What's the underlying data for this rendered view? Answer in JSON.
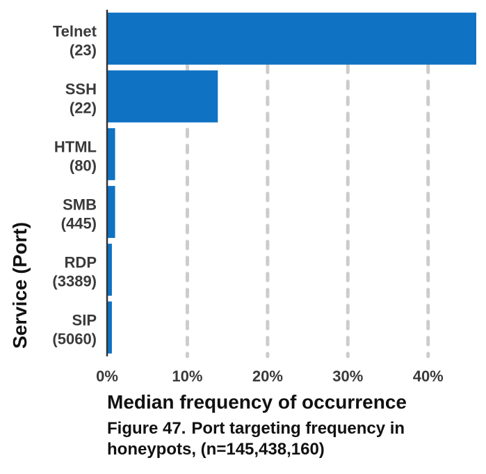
{
  "chart_data": {
    "type": "bar",
    "orientation": "horizontal",
    "categories": [
      {
        "name": "Telnet",
        "port": "(23)"
      },
      {
        "name": "SSH",
        "port": "(22)"
      },
      {
        "name": "HTML",
        "port": "(80)"
      },
      {
        "name": "SMB",
        "port": "(445)"
      },
      {
        "name": "RDP",
        "port": "(3389)"
      },
      {
        "name": "SIP",
        "port": "(5060)"
      }
    ],
    "values": [
      46.0,
      13.8,
      1.0,
      1.0,
      0.6,
      0.6
    ],
    "xlabel": "Median frequency of occurrence",
    "ylabel": "Service (Port)",
    "xlim": [
      0,
      46
    ],
    "xticks": [
      0,
      10,
      20,
      30,
      40
    ],
    "xtick_labels": [
      "0%",
      "10%",
      "20%",
      "30%",
      "40%"
    ],
    "grid": "vertical dashed",
    "colors": {
      "bar": "#0f72c3",
      "grid": "#cccccc",
      "axis": "#333333",
      "tick_text": "#3a3a3a",
      "label_text": "#111111"
    }
  },
  "caption": {
    "figure_number": "Figure 47.",
    "text": "Port targeting frequency in honeypots, (n=145,438,160)"
  }
}
